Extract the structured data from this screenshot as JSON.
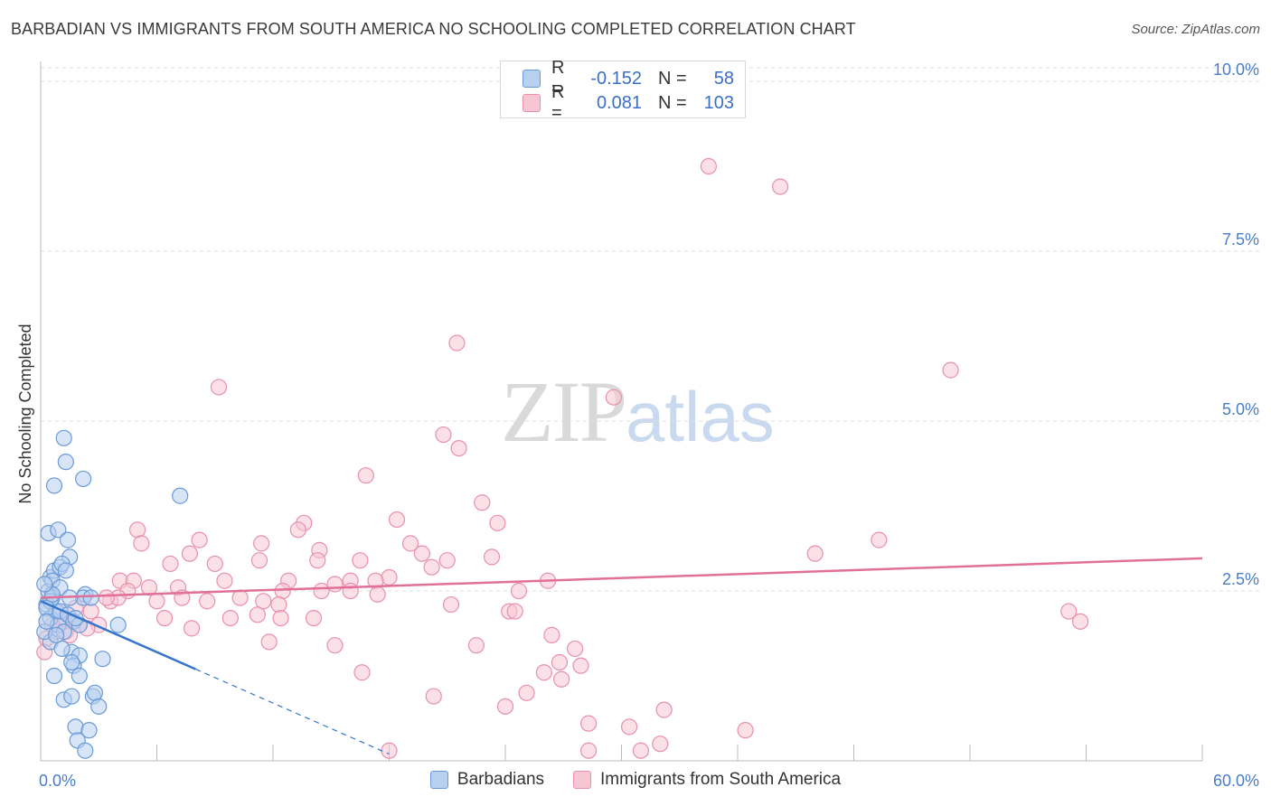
{
  "header": {
    "title": "BARBADIAN VS IMMIGRANTS FROM SOUTH AMERICA NO SCHOOLING COMPLETED CORRELATION CHART",
    "source": "Source: ZipAtlas.com"
  },
  "watermark": {
    "zip": "ZIP",
    "atlas": "atlas"
  },
  "legend": {
    "rows": [
      {
        "r_label": "R =",
        "r_value": "-0.152",
        "n_label": "N =",
        "n_value": "58"
      },
      {
        "r_label": "R =",
        "r_value": "0.081",
        "n_label": "N =",
        "n_value": "103"
      }
    ]
  },
  "bottom_legend": {
    "series1": "Barbadians",
    "series2": "Immigrants from South America"
  },
  "colors": {
    "blue_fill": "#b7d0f0",
    "blue_stroke": "#6a9ad8",
    "blue_line": "#3575cc",
    "pink_fill": "#f7c6d5",
    "pink_stroke": "#e890ac",
    "pink_line": "#e0709a",
    "grid": "#dddddd",
    "tick_text": "#4a7cc7"
  },
  "chart_data": {
    "type": "scatter",
    "title": "BARBADIAN VS IMMIGRANTS FROM SOUTH AMERICA NO SCHOOLING COMPLETED CORRELATION CHART",
    "ylabel": "No Schooling Completed",
    "xlabel": "",
    "xlim": [
      0,
      60
    ],
    "ylim": [
      0,
      10.2
    ],
    "x_tick_labels": [
      "0.0%",
      "60.0%"
    ],
    "y_ticks": [
      {
        "value": 2.5,
        "label": "2.5%"
      },
      {
        "value": 5.0,
        "label": "5.0%"
      },
      {
        "value": 7.5,
        "label": "7.5%"
      },
      {
        "value": 10.0,
        "label": "10.0%"
      }
    ],
    "series": [
      {
        "name": "Barbadians",
        "color": "blue",
        "trend": {
          "x0": 0,
          "y0": 2.35,
          "x1": 8.0,
          "y1": 1.35,
          "dash_to_x": 18.0,
          "dash_to_y": 0.1
        },
        "points": [
          [
            0.3,
            2.3
          ],
          [
            0.4,
            2.5
          ],
          [
            0.5,
            2.7
          ],
          [
            0.5,
            2.1
          ],
          [
            0.6,
            2.4
          ],
          [
            0.7,
            2.8
          ],
          [
            0.8,
            2.2
          ],
          [
            0.9,
            2.0
          ],
          [
            1.0,
            2.85
          ],
          [
            0.4,
            3.35
          ],
          [
            0.9,
            3.4
          ],
          [
            1.4,
            3.25
          ],
          [
            1.5,
            3.0
          ],
          [
            0.7,
            4.05
          ],
          [
            1.3,
            4.4
          ],
          [
            1.2,
            4.75
          ],
          [
            2.2,
            4.15
          ],
          [
            7.2,
            3.9
          ],
          [
            1.1,
            2.9
          ],
          [
            1.3,
            2.8
          ],
          [
            0.6,
            2.65
          ],
          [
            1.0,
            2.55
          ],
          [
            2.3,
            2.45
          ],
          [
            2.2,
            2.4
          ],
          [
            1.5,
            2.4
          ],
          [
            0.5,
            2.35
          ],
          [
            0.3,
            2.25
          ],
          [
            1.0,
            2.2
          ],
          [
            1.4,
            2.15
          ],
          [
            1.7,
            2.05
          ],
          [
            2.0,
            2.0
          ],
          [
            4.0,
            2.0
          ],
          [
            1.2,
            1.9
          ],
          [
            0.5,
            1.75
          ],
          [
            1.6,
            1.6
          ],
          [
            1.1,
            1.65
          ],
          [
            2.0,
            1.55
          ],
          [
            3.2,
            1.5
          ],
          [
            1.7,
            1.4
          ],
          [
            1.6,
            1.45
          ],
          [
            0.7,
            1.25
          ],
          [
            2.0,
            1.25
          ],
          [
            2.7,
            0.95
          ],
          [
            2.8,
            1.0
          ],
          [
            1.2,
            0.9
          ],
          [
            1.6,
            0.95
          ],
          [
            3.0,
            0.8
          ],
          [
            1.8,
            0.5
          ],
          [
            2.5,
            0.45
          ],
          [
            1.9,
            0.3
          ],
          [
            2.3,
            0.15
          ],
          [
            0.2,
            1.9
          ],
          [
            0.3,
            2.05
          ],
          [
            0.8,
            1.85
          ],
          [
            0.6,
            2.45
          ],
          [
            1.8,
            2.1
          ],
          [
            0.2,
            2.6
          ],
          [
            2.6,
            2.4
          ]
        ]
      },
      {
        "name": "Immigrants from South America",
        "color": "pink",
        "trend": {
          "x0": 0,
          "y0": 2.4,
          "x1": 60,
          "y1": 2.98
        },
        "points": [
          [
            34.5,
            8.75
          ],
          [
            38.2,
            8.45
          ],
          [
            21.5,
            6.15
          ],
          [
            47.0,
            5.75
          ],
          [
            9.2,
            5.5
          ],
          [
            29.6,
            5.35
          ],
          [
            20.8,
            4.8
          ],
          [
            21.6,
            4.6
          ],
          [
            16.8,
            4.2
          ],
          [
            22.8,
            3.8
          ],
          [
            18.4,
            3.55
          ],
          [
            23.6,
            3.5
          ],
          [
            13.6,
            3.5
          ],
          [
            13.3,
            3.4
          ],
          [
            5.0,
            3.4
          ],
          [
            5.2,
            3.2
          ],
          [
            8.2,
            3.25
          ],
          [
            11.4,
            3.2
          ],
          [
            14.4,
            3.1
          ],
          [
            19.1,
            3.2
          ],
          [
            40.0,
            3.05
          ],
          [
            43.3,
            3.25
          ],
          [
            7.7,
            3.05
          ],
          [
            6.7,
            2.9
          ],
          [
            9.0,
            2.9
          ],
          [
            11.3,
            2.95
          ],
          [
            14.3,
            2.95
          ],
          [
            16.5,
            2.95
          ],
          [
            19.7,
            3.05
          ],
          [
            21.0,
            2.95
          ],
          [
            23.3,
            3.0
          ],
          [
            20.2,
            2.85
          ],
          [
            18.0,
            2.7
          ],
          [
            12.8,
            2.65
          ],
          [
            16.0,
            2.65
          ],
          [
            17.3,
            2.65
          ],
          [
            26.2,
            2.65
          ],
          [
            4.1,
            2.65
          ],
          [
            4.8,
            2.65
          ],
          [
            9.5,
            2.65
          ],
          [
            15.2,
            2.6
          ],
          [
            24.7,
            2.5
          ],
          [
            4.5,
            2.5
          ],
          [
            5.6,
            2.55
          ],
          [
            7.1,
            2.55
          ],
          [
            12.5,
            2.5
          ],
          [
            14.5,
            2.5
          ],
          [
            16.0,
            2.5
          ],
          [
            10.3,
            2.4
          ],
          [
            11.5,
            2.35
          ],
          [
            12.3,
            2.3
          ],
          [
            7.3,
            2.4
          ],
          [
            6.0,
            2.35
          ],
          [
            8.6,
            2.35
          ],
          [
            3.6,
            2.35
          ],
          [
            4.0,
            2.4
          ],
          [
            17.4,
            2.45
          ],
          [
            21.2,
            2.3
          ],
          [
            24.2,
            2.2
          ],
          [
            24.5,
            2.2
          ],
          [
            9.8,
            2.1
          ],
          [
            11.2,
            2.15
          ],
          [
            12.4,
            2.1
          ],
          [
            14.1,
            2.1
          ],
          [
            6.4,
            2.1
          ],
          [
            3.0,
            2.0
          ],
          [
            1.2,
            2.1
          ],
          [
            2.0,
            2.0
          ],
          [
            1.3,
            1.9
          ],
          [
            0.8,
            1.9
          ],
          [
            2.6,
            2.2
          ],
          [
            0.3,
            1.8
          ],
          [
            0.2,
            1.6
          ],
          [
            1.5,
            1.85
          ],
          [
            7.8,
            1.95
          ],
          [
            11.8,
            1.75
          ],
          [
            15.2,
            1.7
          ],
          [
            22.5,
            1.7
          ],
          [
            26.4,
            1.85
          ],
          [
            27.6,
            1.65
          ],
          [
            53.1,
            2.2
          ],
          [
            53.7,
            2.05
          ],
          [
            16.6,
            1.3
          ],
          [
            26.0,
            1.3
          ],
          [
            26.8,
            1.45
          ],
          [
            27.9,
            1.4
          ],
          [
            26.9,
            1.2
          ],
          [
            25.1,
            1.0
          ],
          [
            20.3,
            0.95
          ],
          [
            24.0,
            0.8
          ],
          [
            28.3,
            0.55
          ],
          [
            32.2,
            0.75
          ],
          [
            30.4,
            0.5
          ],
          [
            36.4,
            0.45
          ],
          [
            28.3,
            0.15
          ],
          [
            31.0,
            0.15
          ],
          [
            32.0,
            0.25
          ],
          [
            18.0,
            0.15
          ],
          [
            0.6,
            2.0
          ],
          [
            1.0,
            2.2
          ],
          [
            3.4,
            2.4
          ],
          [
            2.4,
            1.95
          ],
          [
            1.8,
            2.25
          ]
        ]
      }
    ]
  }
}
